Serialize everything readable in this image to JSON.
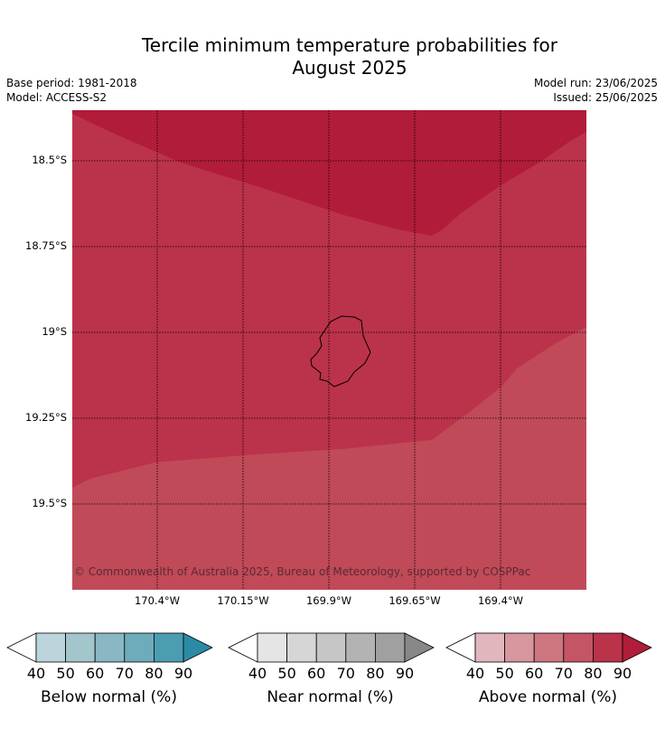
{
  "title_line1": "Tercile minimum temperature probabilities for",
  "title_line2": "August 2025",
  "meta": {
    "base_period": "Base period: 1981-2018",
    "model": "Model: ACCESS-S2",
    "model_run": "Model run: 23/06/2025",
    "issued": "Issued: 25/06/2025"
  },
  "map": {
    "region": "Niue",
    "lat_ticks": [
      "18.5°S",
      "18.75°S",
      "19°S",
      "19.25°S",
      "19.5°S"
    ],
    "lon_ticks": [
      "170.4°W",
      "170.15°W",
      "169.9°W",
      "169.65°W",
      "169.4°W"
    ],
    "copyright": "© Commonwealth of Australia 2025, Bureau of Meteorology, supported by COSPPac",
    "zones": [
      {
        "category": "Above normal",
        "range": "80-90",
        "color": "#b11c3a"
      },
      {
        "category": "Above normal",
        "range": "70-80",
        "color": "#bb324b"
      },
      {
        "category": "Above normal",
        "range": "60-70",
        "color": "#c04a58"
      }
    ]
  },
  "colorbars": [
    {
      "label": "Below normal (%)",
      "ticks": [
        "40",
        "50",
        "60",
        "70",
        "80",
        "90"
      ],
      "colors": [
        "#ffffff",
        "#bcd4db",
        "#a3c6cc",
        "#89b7c3",
        "#6eacbc",
        "#4c9db2",
        "#2c8aa4"
      ]
    },
    {
      "label": "Near normal (%)",
      "ticks": [
        "40",
        "50",
        "60",
        "70",
        "80",
        "90"
      ],
      "colors": [
        "#ffffff",
        "#e5e5e5",
        "#d6d6d6",
        "#c6c6c6",
        "#b3b3b3",
        "#a0a0a0",
        "#888888"
      ]
    },
    {
      "label": "Above normal (%)",
      "ticks": [
        "40",
        "50",
        "60",
        "70",
        "80",
        "90"
      ],
      "colors": [
        "#ffffff",
        "#e1b7bd",
        "#d7979f",
        "#cd7680",
        "#c45564",
        "#bb324b",
        "#b11c3a"
      ]
    }
  ]
}
